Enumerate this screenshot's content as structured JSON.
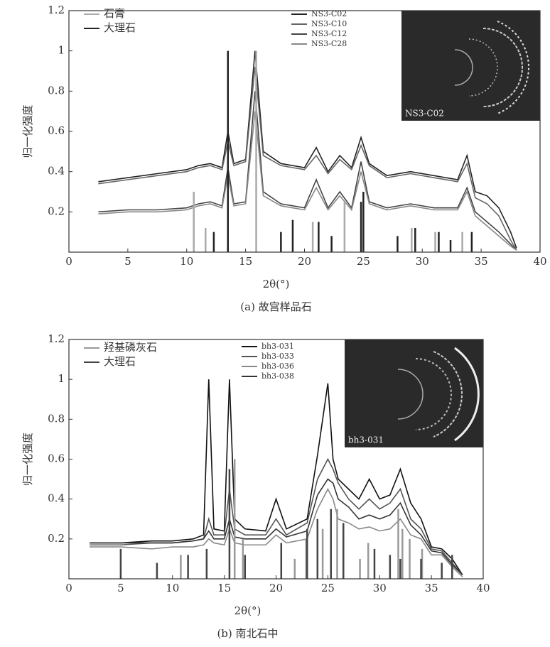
{
  "chart_data": [
    {
      "type": "line",
      "xlabel": "2θ(°)",
      "ylabel": "归一化强度",
      "caption": "(a) 故宫样品石",
      "xlim": [
        0,
        40
      ],
      "ylim": [
        0,
        1.2
      ],
      "xticks": [
        0,
        5,
        10,
        15,
        20,
        25,
        30,
        35,
        40
      ],
      "yticks": [
        0.2,
        0.4,
        0.6,
        0.8,
        1,
        1.2
      ],
      "inset_label": "NS3-C02",
      "series": [
        {
          "name": "NS3-C02",
          "style": "line",
          "color": "#222",
          "x": [
            2.5,
            5,
            7.5,
            10,
            11,
            12,
            13,
            13.5,
            14,
            15,
            15.8,
            16.5,
            18,
            19,
            20,
            21,
            22,
            23,
            24,
            24.8,
            25.5,
            27,
            29,
            31,
            33,
            33.8,
            34.5,
            35.5,
            36.5,
            37.5,
            38
          ],
          "values": [
            0.35,
            0.37,
            0.39,
            0.41,
            0.43,
            0.44,
            0.42,
            0.6,
            0.44,
            0.46,
            1.0,
            0.5,
            0.44,
            0.43,
            0.42,
            0.52,
            0.4,
            0.48,
            0.42,
            0.57,
            0.44,
            0.38,
            0.4,
            0.38,
            0.36,
            0.48,
            0.3,
            0.28,
            0.22,
            0.1,
            0.02
          ]
        },
        {
          "name": "NS3-C10",
          "style": "line",
          "color": "#666",
          "x": [
            2.5,
            5,
            7.5,
            10,
            11,
            12,
            13,
            13.5,
            14,
            15,
            15.8,
            16.5,
            18,
            19,
            20,
            21,
            22,
            23,
            24,
            24.8,
            25.5,
            27,
            29,
            31,
            33,
            33.8,
            34.5,
            35.5,
            36.5,
            37.5,
            38
          ],
          "values": [
            0.34,
            0.36,
            0.38,
            0.4,
            0.42,
            0.43,
            0.41,
            0.55,
            0.43,
            0.45,
            0.92,
            0.48,
            0.43,
            0.42,
            0.41,
            0.48,
            0.39,
            0.46,
            0.41,
            0.53,
            0.43,
            0.37,
            0.39,
            0.37,
            0.35,
            0.44,
            0.27,
            0.24,
            0.18,
            0.06,
            0.01
          ]
        },
        {
          "name": "NS3-C12",
          "style": "line",
          "color": "#444",
          "x": [
            2.5,
            5,
            7.5,
            10,
            11,
            12,
            13,
            13.5,
            14,
            15,
            15.8,
            16.5,
            18,
            19,
            20,
            21,
            22,
            23,
            24,
            24.8,
            25.5,
            27,
            29,
            31,
            33,
            33.8,
            34.5,
            35.5,
            36.5,
            37.5,
            38
          ],
          "values": [
            0.2,
            0.21,
            0.21,
            0.22,
            0.24,
            0.25,
            0.23,
            0.42,
            0.24,
            0.25,
            0.8,
            0.3,
            0.24,
            0.23,
            0.22,
            0.36,
            0.22,
            0.3,
            0.22,
            0.45,
            0.25,
            0.22,
            0.24,
            0.22,
            0.22,
            0.32,
            0.2,
            0.15,
            0.1,
            0.04,
            0.01
          ]
        },
        {
          "name": "NS3-C28",
          "style": "line",
          "color": "#888",
          "x": [
            2.5,
            5,
            7.5,
            10,
            11,
            12,
            13,
            13.5,
            14,
            15,
            15.8,
            16.5,
            18,
            19,
            20,
            21,
            22,
            23,
            24,
            24.8,
            25.5,
            27,
            29,
            31,
            33,
            33.8,
            34.5,
            35.5,
            36.5,
            37.5,
            38
          ],
          "values": [
            0.19,
            0.2,
            0.2,
            0.21,
            0.23,
            0.24,
            0.22,
            0.38,
            0.23,
            0.24,
            0.7,
            0.28,
            0.23,
            0.22,
            0.21,
            0.32,
            0.21,
            0.28,
            0.21,
            0.4,
            0.24,
            0.21,
            0.23,
            0.21,
            0.21,
            0.3,
            0.18,
            0.13,
            0.08,
            0.03,
            0.01
          ]
        },
        {
          "name": "石膏",
          "style": "stick",
          "color": "#aaa",
          "x": [
            10.6,
            11.6,
            15.9,
            20.7,
            23.4,
            29.1,
            31.1,
            33.4
          ],
          "values": [
            0.3,
            0.12,
            1.0,
            0.15,
            0.25,
            0.12,
            0.1,
            0.1
          ]
        },
        {
          "name": "大理石",
          "style": "stick",
          "color": "#222",
          "x": [
            12.3,
            13.5,
            18,
            19,
            21.2,
            22.3,
            24.8,
            25,
            27.9,
            29.4,
            31.4,
            32.4,
            34.2
          ],
          "values": [
            0.1,
            1.0,
            0.1,
            0.16,
            0.15,
            0.08,
            0.25,
            0.3,
            0.08,
            0.12,
            0.1,
            0.06,
            0.1
          ]
        }
      ]
    },
    {
      "type": "line",
      "xlabel": "2θ(°)",
      "ylabel": "归一化强度",
      "caption": "(b) 南北石中",
      "xlim": [
        0,
        40
      ],
      "ylim": [
        0,
        1.2
      ],
      "xticks": [
        0,
        5,
        10,
        15,
        20,
        25,
        30,
        35,
        40
      ],
      "yticks": [
        0.2,
        0.4,
        0.6,
        0.8,
        1,
        1.2
      ],
      "inset_label": "bh3-031",
      "series": [
        {
          "name": "bh3-031",
          "style": "line",
          "color": "#111",
          "x": [
            2,
            5,
            8,
            10,
            12,
            13,
            13.5,
            14,
            15,
            15.5,
            16,
            17,
            19,
            20,
            21,
            23,
            24,
            25,
            25.5,
            26,
            27,
            28,
            29,
            30,
            31,
            32,
            33,
            34,
            35,
            36,
            37,
            38
          ],
          "values": [
            0.18,
            0.18,
            0.19,
            0.19,
            0.2,
            0.22,
            1.0,
            0.25,
            0.24,
            1.0,
            0.3,
            0.25,
            0.24,
            0.4,
            0.25,
            0.3,
            0.62,
            0.98,
            0.6,
            0.5,
            0.45,
            0.4,
            0.5,
            0.4,
            0.42,
            0.55,
            0.38,
            0.3,
            0.16,
            0.15,
            0.1,
            0.02
          ]
        },
        {
          "name": "bh3-033",
          "style": "line",
          "color": "#555",
          "x": [
            2,
            5,
            8,
            10,
            12,
            13,
            13.5,
            14,
            15,
            15.5,
            16,
            17,
            19,
            20,
            21,
            23,
            24,
            25,
            25.5,
            26,
            27,
            28,
            29,
            30,
            31,
            32,
            33,
            34,
            35,
            36,
            37,
            38
          ],
          "values": [
            0.17,
            0.17,
            0.18,
            0.18,
            0.19,
            0.2,
            0.3,
            0.22,
            0.22,
            0.45,
            0.25,
            0.22,
            0.22,
            0.3,
            0.22,
            0.28,
            0.5,
            0.6,
            0.55,
            0.48,
            0.4,
            0.35,
            0.4,
            0.35,
            0.38,
            0.45,
            0.3,
            0.25,
            0.15,
            0.14,
            0.08,
            0.02
          ]
        },
        {
          "name": "bh3-036",
          "style": "line",
          "color": "#888",
          "x": [
            2,
            5,
            8,
            10,
            12,
            13,
            13.5,
            14,
            15,
            15.5,
            16,
            17,
            19,
            20,
            21,
            23,
            24,
            25,
            25.5,
            26,
            27,
            28,
            29,
            30,
            31,
            32,
            33,
            34,
            35,
            36,
            37,
            38
          ],
          "values": [
            0.16,
            0.16,
            0.15,
            0.16,
            0.16,
            0.17,
            0.2,
            0.18,
            0.17,
            0.25,
            0.18,
            0.17,
            0.17,
            0.22,
            0.18,
            0.2,
            0.35,
            0.45,
            0.4,
            0.3,
            0.28,
            0.25,
            0.26,
            0.24,
            0.25,
            0.3,
            0.22,
            0.2,
            0.12,
            0.12,
            0.06,
            0.01
          ]
        },
        {
          "name": "bh3-038",
          "style": "line",
          "color": "#333",
          "x": [
            2,
            5,
            8,
            10,
            12,
            13,
            13.5,
            14,
            15,
            15.5,
            16,
            17,
            19,
            20,
            21,
            23,
            24,
            25,
            25.5,
            26,
            27,
            28,
            29,
            30,
            31,
            32,
            33,
            34,
            35,
            36,
            37,
            38
          ],
          "values": [
            0.18,
            0.18,
            0.18,
            0.18,
            0.19,
            0.2,
            0.24,
            0.2,
            0.2,
            0.3,
            0.21,
            0.2,
            0.2,
            0.25,
            0.21,
            0.24,
            0.42,
            0.5,
            0.48,
            0.4,
            0.36,
            0.3,
            0.32,
            0.3,
            0.32,
            0.38,
            0.27,
            0.22,
            0.14,
            0.13,
            0.07,
            0.02
          ]
        },
        {
          "name": "羟基磷灰石",
          "style": "stick",
          "color": "#999",
          "x": [
            10.8,
            16,
            16.8,
            21.8,
            22.9,
            24.5,
            25.9,
            26.5,
            28.1,
            28.9,
            31.8,
            32.2,
            32.9,
            34.1
          ],
          "values": [
            0.12,
            0.6,
            0.2,
            0.1,
            0.2,
            0.25,
            0.35,
            0.2,
            0.1,
            0.18,
            0.35,
            0.25,
            0.2,
            0.15
          ]
        },
        {
          "name": "大理石",
          "style": "stick",
          "color": "#444",
          "x": [
            5,
            8.5,
            11.5,
            13.3,
            15.5,
            17,
            20.5,
            23,
            24,
            25.3,
            26.5,
            29.5,
            31,
            32,
            34,
            36,
            37
          ],
          "values": [
            0.15,
            0.08,
            0.12,
            0.15,
            0.55,
            0.12,
            0.18,
            0.25,
            0.3,
            0.35,
            0.28,
            0.15,
            0.12,
            0.1,
            0.1,
            0.08,
            0.12
          ]
        }
      ]
    }
  ]
}
